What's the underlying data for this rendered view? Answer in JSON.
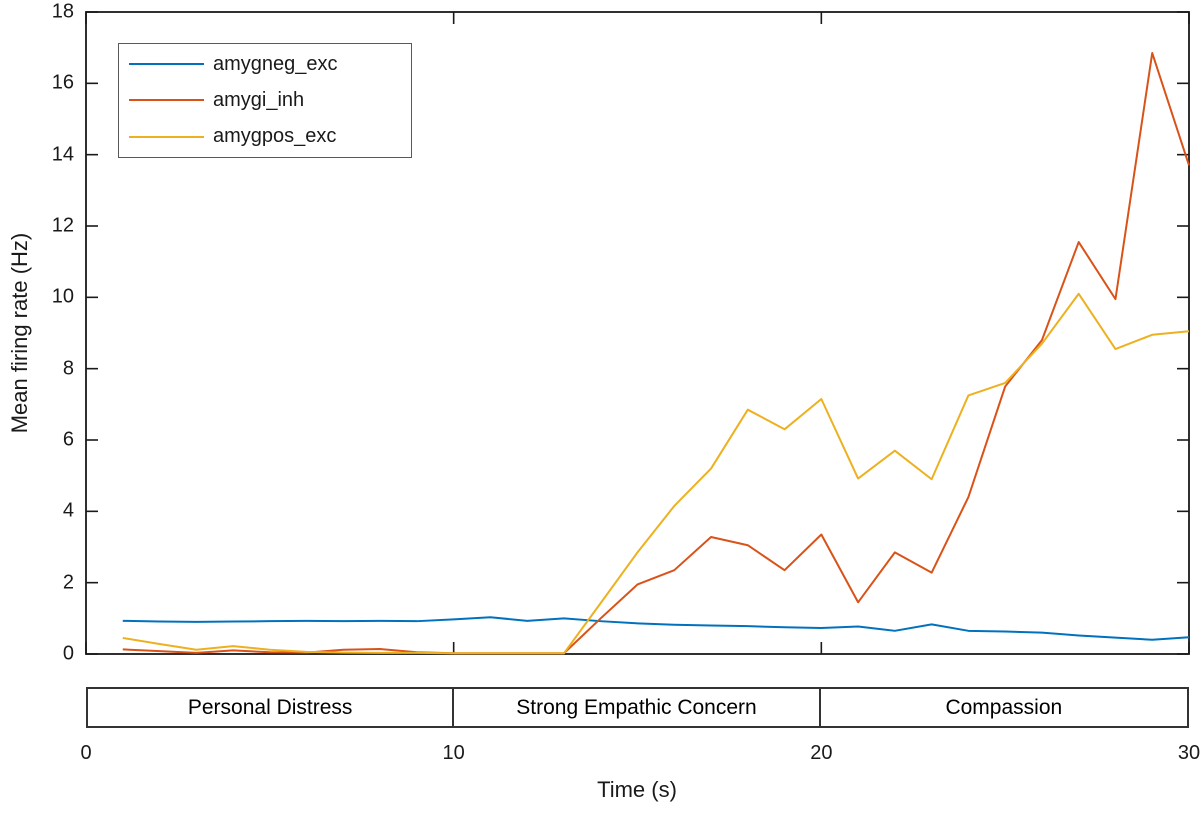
{
  "chart_data": {
    "type": "line",
    "title": "",
    "xlabel": "Time (s)",
    "ylabel": "Mean firing rate (Hz)",
    "xlim": [
      0,
      30
    ],
    "ylim": [
      0,
      18
    ],
    "xticks": [
      0,
      10,
      20,
      30
    ],
    "yticks": [
      0,
      2,
      4,
      6,
      8,
      10,
      12,
      14,
      16,
      18
    ],
    "grid": false,
    "legend_position": "top-left",
    "x": [
      1,
      2,
      3,
      4,
      5,
      6,
      7,
      8,
      9,
      10,
      11,
      12,
      13,
      14,
      15,
      16,
      17,
      18,
      19,
      20,
      21,
      22,
      23,
      24,
      25,
      26,
      27,
      28,
      29,
      30
    ],
    "series": [
      {
        "name": "amygneg_exc",
        "color": "#0072BD",
        "values": [
          0.93,
          0.91,
          0.9,
          0.91,
          0.92,
          0.93,
          0.92,
          0.93,
          0.92,
          0.97,
          1.03,
          0.93,
          1.0,
          0.92,
          0.86,
          0.82,
          0.8,
          0.78,
          0.75,
          0.73,
          0.77,
          0.65,
          0.83,
          0.65,
          0.63,
          0.6,
          0.52,
          0.46,
          0.4,
          0.47
        ]
      },
      {
        "name": "amygi_inh",
        "color": "#D95319",
        "values": [
          0.13,
          0.08,
          0.03,
          0.1,
          0.05,
          0.04,
          0.12,
          0.14,
          0.05,
          0.02,
          0.02,
          0.02,
          0.02,
          1.0,
          1.95,
          2.35,
          3.28,
          3.05,
          2.35,
          3.35,
          1.45,
          2.85,
          2.28,
          4.4,
          7.5,
          8.8,
          11.55,
          9.95,
          16.85,
          13.7
        ]
      },
      {
        "name": "amygpos_exc",
        "color": "#EDB120",
        "values": [
          0.45,
          0.28,
          0.12,
          0.22,
          0.12,
          0.06,
          0.04,
          0.03,
          0.03,
          0.02,
          0.02,
          0.02,
          0.02,
          1.43,
          2.85,
          4.15,
          5.2,
          6.85,
          6.3,
          7.15,
          4.92,
          5.7,
          4.9,
          7.25,
          7.6,
          8.7,
          10.1,
          8.55,
          8.95,
          9.05
        ]
      }
    ],
    "bands": [
      {
        "label": "Personal Distress",
        "range": [
          0,
          10
        ]
      },
      {
        "label": "Strong Empathic Concern",
        "range": [
          10,
          20
        ]
      },
      {
        "label": "Compassion",
        "range": [
          20,
          30
        ]
      }
    ]
  }
}
